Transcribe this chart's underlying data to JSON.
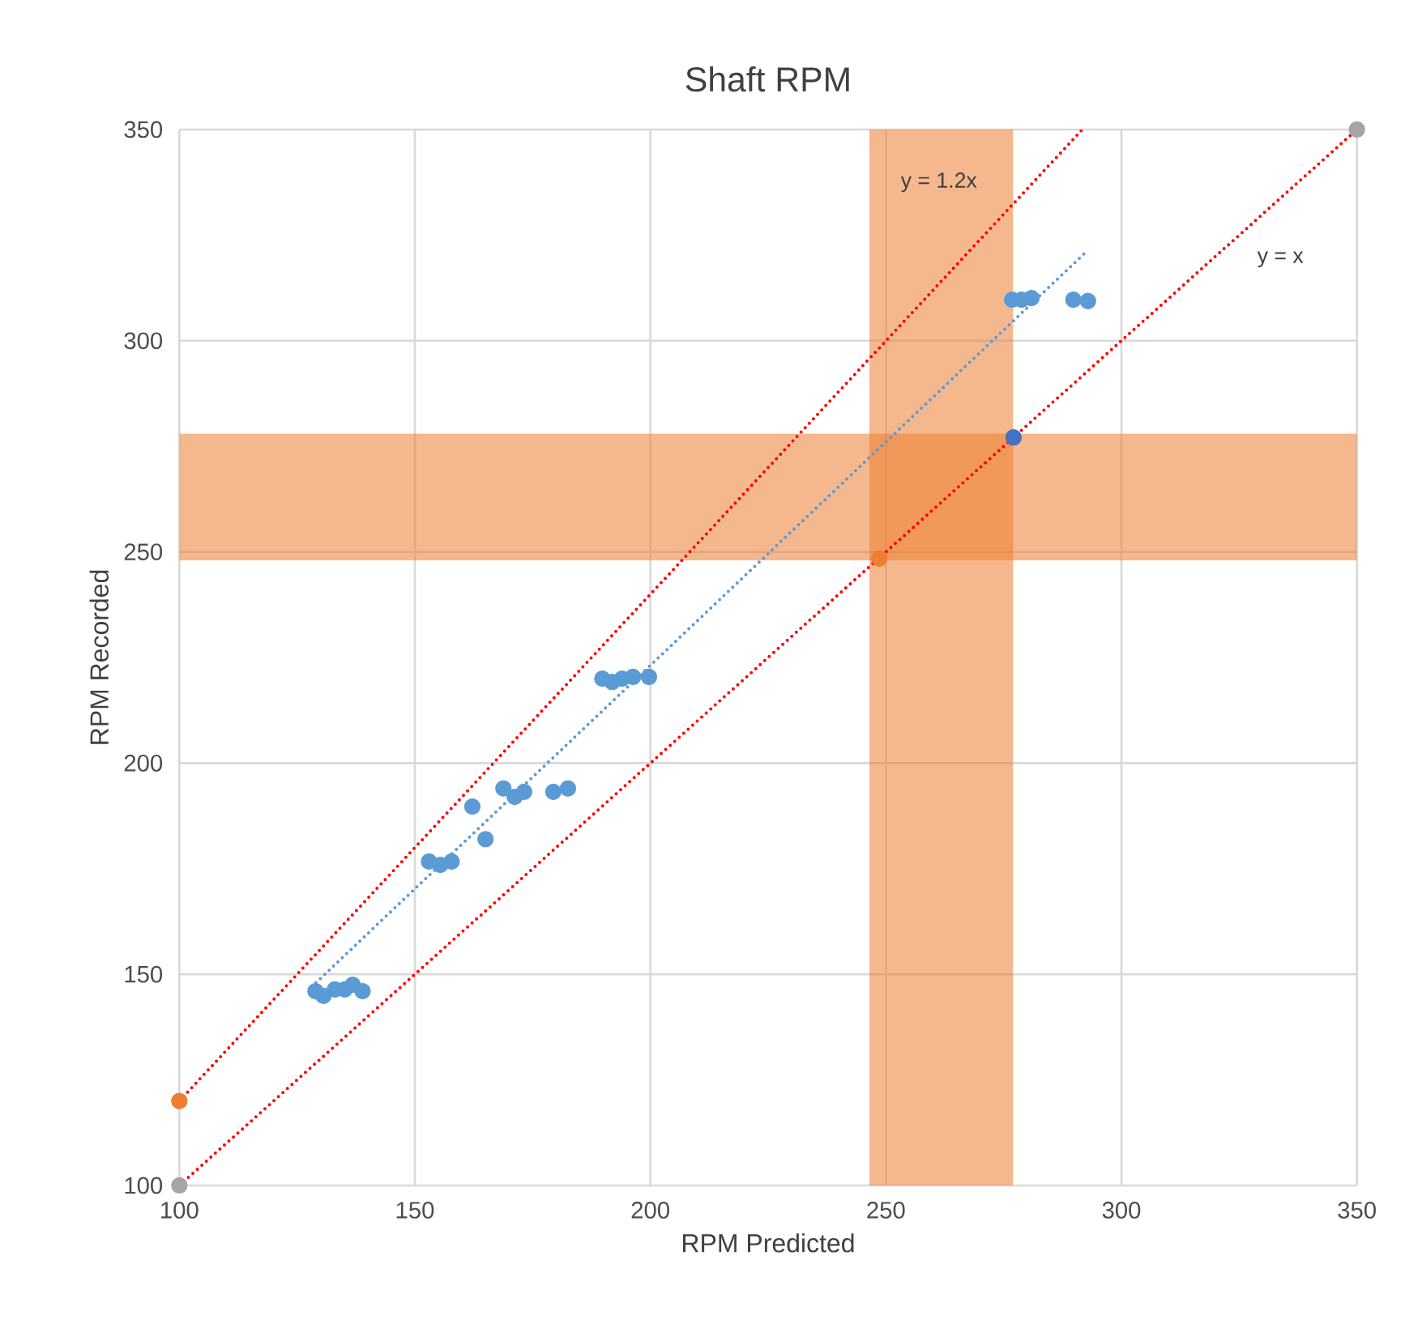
{
  "chart_data": {
    "type": "scatter",
    "title": "Shaft RPM",
    "xlabel": "RPM Predicted",
    "ylabel": "RPM Recorded",
    "xlim": [
      100,
      350
    ],
    "ylim": [
      100,
      350
    ],
    "xticks": [
      100,
      150,
      200,
      250,
      300,
      350
    ],
    "yticks": [
      100,
      150,
      200,
      250,
      300,
      350
    ],
    "grid": true,
    "series": [
      {
        "type": "line",
        "color": "#ff0000",
        "line_style": "dotted",
        "marker": "none",
        "x": [
          100,
          291.7
        ],
        "values": [
          120,
          350
        ]
      },
      {
        "type": "line",
        "color": "#ff0000",
        "line_style": "dotted",
        "marker": "none",
        "x": [
          100,
          350
        ],
        "values": [
          100,
          350
        ]
      },
      {
        "type": "line",
        "color": "#5b9bd5",
        "line_style": "dotted",
        "marker": "none",
        "x": [
          129,
          292
        ],
        "values": [
          148,
          320.5
        ]
      },
      {
        "type": "scatter",
        "marker": "circle",
        "color": "#5b9bd5",
        "x": [
          128.9,
          130.6,
          133,
          135.1,
          136.8,
          138.9,
          153,
          155.4,
          157.8,
          162.2,
          165,
          168.8,
          171.2,
          173.2,
          179.4,
          182.5,
          189.8,
          191.9,
          194,
          196.3,
          199.7,
          276.8,
          278.8,
          280.9,
          289.8,
          292.9
        ],
        "values": [
          146,
          144.9,
          146.4,
          146.4,
          147.5,
          146,
          176.7,
          175.9,
          176.7,
          189.7,
          182,
          194,
          192,
          193.2,
          193.2,
          194,
          220,
          219.2,
          220,
          220.4,
          220.4,
          309.7,
          309.7,
          310.1,
          309.7,
          309.4
        ]
      },
      {
        "type": "scatter",
        "marker": "circle",
        "color": "#4472c4",
        "x": [
          277.1
        ],
        "values": [
          277.1
        ]
      },
      {
        "marker": "circle",
        "color": "#ed7d31",
        "x": [
          248.6,
          100
        ],
        "values": [
          248.4,
          120
        ]
      },
      {
        "marker": "circle",
        "color": "#a5a5a5",
        "x": [
          100,
          350
        ],
        "values": [
          100,
          350
        ]
      }
    ],
    "bands": [
      {
        "axis": "y",
        "from": 248,
        "to": 278,
        "color": "#ed7d31"
      },
      {
        "axis": "x",
        "from": 246.5,
        "to": 277,
        "color": "#ed7d31"
      }
    ],
    "annotations": [
      "y = 1.2x",
      "y = x"
    ]
  }
}
